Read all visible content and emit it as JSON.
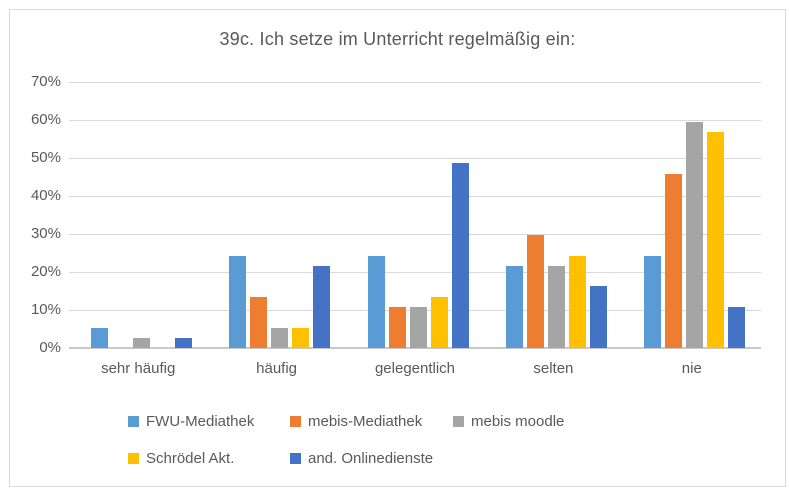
{
  "chart_data": {
    "type": "bar",
    "title": "39c. Ich setze im Unterricht regelmäßig ein:",
    "categories": [
      "sehr häufig",
      "häufig",
      "gelegentlich",
      "selten",
      "nie"
    ],
    "series": [
      {
        "name": "FWU-Mediathek",
        "color": "#5B9BD5",
        "values": [
          5.4,
          24.3,
          24.3,
          21.6,
          24.3
        ]
      },
      {
        "name": "mebis-Mediathek",
        "color": "#ED7D31",
        "values": [
          0,
          13.5,
          10.8,
          29.7,
          45.9
        ]
      },
      {
        "name": "mebis moodle",
        "color": "#A5A5A5",
        "values": [
          2.7,
          5.4,
          10.8,
          21.6,
          59.5
        ]
      },
      {
        "name": "Schrödel Akt.",
        "color": "#FFC000",
        "values": [
          0,
          5.4,
          13.5,
          24.3,
          56.8
        ]
      },
      {
        "name": "and. Onlinedienste",
        "color": "#4472C4",
        "values": [
          2.7,
          21.6,
          48.6,
          16.2,
          10.8
        ]
      }
    ],
    "xlabel": "",
    "ylabel": "",
    "ylim": [
      0,
      70
    ],
    "ytick_step": 10,
    "yticks": [
      "0%",
      "10%",
      "20%",
      "30%",
      "40%",
      "50%",
      "60%",
      "70%"
    ],
    "grid": true,
    "legend_position": "bottom",
    "legend_rows": [
      [
        0,
        1,
        2
      ],
      [
        3,
        4
      ]
    ]
  },
  "colors": {
    "text": "#595959",
    "gridline": "#D9D9D9",
    "axis_line": "#C9C9C9",
    "frame_border": "#D9D9D9",
    "background": "#FFFFFF"
  }
}
